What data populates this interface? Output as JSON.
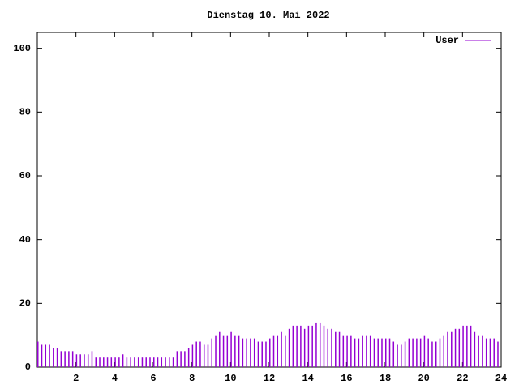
{
  "chart_data": {
    "type": "impulse",
    "title": "Dienstag 10. Mai 2022",
    "xlim": [
      0,
      24
    ],
    "xticks": [
      2,
      4,
      6,
      8,
      10,
      12,
      14,
      16,
      18,
      20,
      22,
      24
    ],
    "ylim": [
      0,
      105
    ],
    "yticks": [
      0,
      20,
      40,
      60,
      80,
      100
    ],
    "legend": "top-right",
    "x": [
      0,
      0.2,
      0.4,
      0.6,
      0.8,
      1,
      1.2,
      1.4,
      1.6,
      1.8,
      2,
      2.2,
      2.4,
      2.6,
      2.8,
      3,
      3.2,
      3.4,
      3.6,
      3.8,
      4,
      4.2,
      4.4,
      4.6,
      4.8,
      5,
      5.2,
      5.4,
      5.6,
      5.8,
      6,
      6.2,
      6.4,
      6.6,
      6.8,
      7,
      7.2,
      7.4,
      7.6,
      7.8,
      8,
      8.2,
      8.4,
      8.6,
      8.8,
      9,
      9.2,
      9.4,
      9.6,
      9.8,
      10,
      10.2,
      10.4,
      10.6,
      10.8,
      11,
      11.2,
      11.4,
      11.6,
      11.8,
      12,
      12.2,
      12.4,
      12.6,
      12.8,
      13,
      13.2,
      13.4,
      13.6,
      13.8,
      14,
      14.2,
      14.4,
      14.6,
      14.8,
      15,
      15.2,
      15.4,
      15.6,
      15.8,
      16,
      16.2,
      16.4,
      16.6,
      16.8,
      17,
      17.2,
      17.4,
      17.6,
      17.8,
      18,
      18.2,
      18.4,
      18.6,
      18.8,
      19,
      19.2,
      19.4,
      19.6,
      19.8,
      20,
      20.2,
      20.4,
      20.6,
      20.8,
      21,
      21.2,
      21.4,
      21.6,
      21.8,
      22,
      22.2,
      22.4,
      22.6,
      22.8,
      23,
      23.2,
      23.4,
      23.6,
      23.8
    ],
    "series": [
      {
        "name": "User",
        "color": "#9400d3",
        "values": [
          8,
          7,
          7,
          7,
          6,
          6,
          5,
          5,
          5,
          5,
          4,
          4,
          4,
          4,
          5,
          3,
          3,
          3,
          3,
          3,
          3,
          3,
          4,
          3,
          3,
          3,
          3,
          3,
          3,
          3,
          3,
          3,
          3,
          3,
          3,
          3,
          5,
          5,
          5,
          6,
          7,
          8,
          8,
          7,
          7,
          9,
          10,
          11,
          10,
          10,
          11,
          10,
          10,
          9,
          9,
          9,
          9,
          8,
          8,
          8,
          9,
          10,
          10,
          11,
          10,
          12,
          13,
          13,
          13,
          12,
          13,
          13,
          14,
          14,
          13,
          12,
          12,
          11,
          11,
          10,
          10,
          10,
          9,
          9,
          10,
          10,
          10,
          9,
          9,
          9,
          9,
          9,
          8,
          7,
          7,
          8,
          9,
          9,
          9,
          9,
          10,
          9,
          8,
          8,
          9,
          10,
          11,
          11,
          12,
          12,
          13,
          13,
          13,
          11,
          10,
          10,
          9,
          9,
          9,
          8
        ]
      }
    ]
  }
}
